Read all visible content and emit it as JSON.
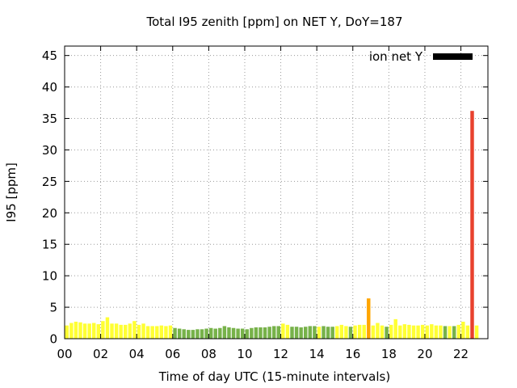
{
  "chart_data": {
    "type": "bar",
    "title": "Total I95 zenith [ppm] on NET Y, DoY=187",
    "xlabel": "Time of day UTC (15-minute intervals)",
    "ylabel": "I95 [ppm]",
    "xlim": [
      0,
      23.5
    ],
    "ylim": [
      0,
      46.5
    ],
    "xticks": [
      0,
      2,
      4,
      6,
      8,
      10,
      12,
      14,
      16,
      18,
      20,
      22
    ],
    "xtick_labels": [
      "00",
      "02",
      "04",
      "06",
      "08",
      "10",
      "12",
      "14",
      "16",
      "18",
      "20",
      "22"
    ],
    "yticks": [
      0,
      5,
      10,
      15,
      20,
      25,
      30,
      35,
      40,
      45
    ],
    "ytick_labels": [
      "0",
      "5",
      "10",
      "15",
      "20",
      "25",
      "30",
      "35",
      "40",
      "45"
    ],
    "grid": true,
    "legend": {
      "label": "ion net Y",
      "color": "#000000",
      "position": "top-right"
    },
    "bar_width_hours": 0.2,
    "bar_colors": {
      "Y": "#ffff33",
      "G": "#77b24a",
      "O": "#ffa500",
      "R": "#e8412d"
    },
    "bars": [
      {
        "x": 0.125,
        "y": 2.1,
        "c": "Y"
      },
      {
        "x": 0.375,
        "y": 2.5,
        "c": "Y"
      },
      {
        "x": 0.625,
        "y": 2.7,
        "c": "Y"
      },
      {
        "x": 0.875,
        "y": 2.6,
        "c": "Y"
      },
      {
        "x": 1.125,
        "y": 2.4,
        "c": "Y"
      },
      {
        "x": 1.375,
        "y": 2.4,
        "c": "Y"
      },
      {
        "x": 1.625,
        "y": 2.5,
        "c": "Y"
      },
      {
        "x": 1.875,
        "y": 2.3,
        "c": "Y"
      },
      {
        "x": 2.125,
        "y": 2.8,
        "c": "Y"
      },
      {
        "x": 2.375,
        "y": 3.4,
        "c": "Y"
      },
      {
        "x": 2.625,
        "y": 2.4,
        "c": "Y"
      },
      {
        "x": 2.875,
        "y": 2.4,
        "c": "Y"
      },
      {
        "x": 3.125,
        "y": 2.2,
        "c": "Y"
      },
      {
        "x": 3.375,
        "y": 2.2,
        "c": "Y"
      },
      {
        "x": 3.625,
        "y": 2.4,
        "c": "Y"
      },
      {
        "x": 3.875,
        "y": 2.8,
        "c": "Y"
      },
      {
        "x": 4.125,
        "y": 2.2,
        "c": "Y"
      },
      {
        "x": 4.375,
        "y": 2.4,
        "c": "Y"
      },
      {
        "x": 4.625,
        "y": 2.0,
        "c": "Y"
      },
      {
        "x": 4.875,
        "y": 2.0,
        "c": "Y"
      },
      {
        "x": 5.125,
        "y": 2.0,
        "c": "Y"
      },
      {
        "x": 5.375,
        "y": 2.1,
        "c": "Y"
      },
      {
        "x": 5.625,
        "y": 2.0,
        "c": "Y"
      },
      {
        "x": 5.875,
        "y": 2.1,
        "c": "Y"
      },
      {
        "x": 6.125,
        "y": 1.7,
        "c": "G"
      },
      {
        "x": 6.375,
        "y": 1.6,
        "c": "G"
      },
      {
        "x": 6.625,
        "y": 1.5,
        "c": "G"
      },
      {
        "x": 6.875,
        "y": 1.4,
        "c": "G"
      },
      {
        "x": 7.125,
        "y": 1.4,
        "c": "G"
      },
      {
        "x": 7.375,
        "y": 1.5,
        "c": "G"
      },
      {
        "x": 7.625,
        "y": 1.5,
        "c": "G"
      },
      {
        "x": 7.875,
        "y": 1.6,
        "c": "G"
      },
      {
        "x": 8.125,
        "y": 1.7,
        "c": "G"
      },
      {
        "x": 8.375,
        "y": 1.6,
        "c": "G"
      },
      {
        "x": 8.625,
        "y": 1.7,
        "c": "G"
      },
      {
        "x": 8.875,
        "y": 2.0,
        "c": "G"
      },
      {
        "x": 9.125,
        "y": 1.8,
        "c": "G"
      },
      {
        "x": 9.375,
        "y": 1.7,
        "c": "G"
      },
      {
        "x": 9.625,
        "y": 1.6,
        "c": "G"
      },
      {
        "x": 9.875,
        "y": 1.6,
        "c": "G"
      },
      {
        "x": 10.125,
        "y": 1.5,
        "c": "G"
      },
      {
        "x": 10.375,
        "y": 1.7,
        "c": "G"
      },
      {
        "x": 10.625,
        "y": 1.8,
        "c": "G"
      },
      {
        "x": 10.875,
        "y": 1.8,
        "c": "G"
      },
      {
        "x": 11.125,
        "y": 1.8,
        "c": "G"
      },
      {
        "x": 11.375,
        "y": 1.9,
        "c": "G"
      },
      {
        "x": 11.625,
        "y": 2.0,
        "c": "G"
      },
      {
        "x": 11.875,
        "y": 2.0,
        "c": "G"
      },
      {
        "x": 12.125,
        "y": 2.4,
        "c": "Y"
      },
      {
        "x": 12.375,
        "y": 2.2,
        "c": "Y"
      },
      {
        "x": 12.625,
        "y": 1.9,
        "c": "G"
      },
      {
        "x": 12.875,
        "y": 1.9,
        "c": "G"
      },
      {
        "x": 13.125,
        "y": 1.8,
        "c": "G"
      },
      {
        "x": 13.375,
        "y": 1.9,
        "c": "G"
      },
      {
        "x": 13.625,
        "y": 2.0,
        "c": "G"
      },
      {
        "x": 13.875,
        "y": 2.0,
        "c": "G"
      },
      {
        "x": 14.125,
        "y": 1.9,
        "c": "Y"
      },
      {
        "x": 14.375,
        "y": 2.0,
        "c": "G"
      },
      {
        "x": 14.625,
        "y": 1.9,
        "c": "G"
      },
      {
        "x": 14.875,
        "y": 1.9,
        "c": "G"
      },
      {
        "x": 15.125,
        "y": 2.0,
        "c": "Y"
      },
      {
        "x": 15.375,
        "y": 2.2,
        "c": "Y"
      },
      {
        "x": 15.625,
        "y": 2.0,
        "c": "Y"
      },
      {
        "x": 15.875,
        "y": 1.9,
        "c": "G"
      },
      {
        "x": 16.125,
        "y": 2.1,
        "c": "Y"
      },
      {
        "x": 16.375,
        "y": 2.2,
        "c": "Y"
      },
      {
        "x": 16.625,
        "y": 2.2,
        "c": "Y"
      },
      {
        "x": 16.875,
        "y": 6.4,
        "c": "O"
      },
      {
        "x": 17.125,
        "y": 2.1,
        "c": "Y"
      },
      {
        "x": 17.375,
        "y": 2.5,
        "c": "Y"
      },
      {
        "x": 17.625,
        "y": 2.1,
        "c": "Y"
      },
      {
        "x": 17.875,
        "y": 1.9,
        "c": "G"
      },
      {
        "x": 18.125,
        "y": 2.2,
        "c": "Y"
      },
      {
        "x": 18.375,
        "y": 3.1,
        "c": "Y"
      },
      {
        "x": 18.625,
        "y": 2.1,
        "c": "Y"
      },
      {
        "x": 18.875,
        "y": 2.3,
        "c": "Y"
      },
      {
        "x": 19.125,
        "y": 2.2,
        "c": "Y"
      },
      {
        "x": 19.375,
        "y": 2.1,
        "c": "Y"
      },
      {
        "x": 19.625,
        "y": 2.1,
        "c": "Y"
      },
      {
        "x": 19.875,
        "y": 2.2,
        "c": "Y"
      },
      {
        "x": 20.125,
        "y": 2.1,
        "c": "Y"
      },
      {
        "x": 20.375,
        "y": 2.3,
        "c": "Y"
      },
      {
        "x": 20.625,
        "y": 2.1,
        "c": "Y"
      },
      {
        "x": 20.875,
        "y": 2.1,
        "c": "Y"
      },
      {
        "x": 21.125,
        "y": 2.0,
        "c": "G"
      },
      {
        "x": 21.375,
        "y": 2.0,
        "c": "Y"
      },
      {
        "x": 21.625,
        "y": 2.0,
        "c": "G"
      },
      {
        "x": 21.875,
        "y": 2.2,
        "c": "Y"
      },
      {
        "x": 22.125,
        "y": 2.7,
        "c": "Y"
      },
      {
        "x": 22.375,
        "y": 2.1,
        "c": "Y"
      },
      {
        "x": 22.625,
        "y": 36.2,
        "c": "R"
      },
      {
        "x": 22.875,
        "y": 2.1,
        "c": "Y"
      }
    ]
  }
}
